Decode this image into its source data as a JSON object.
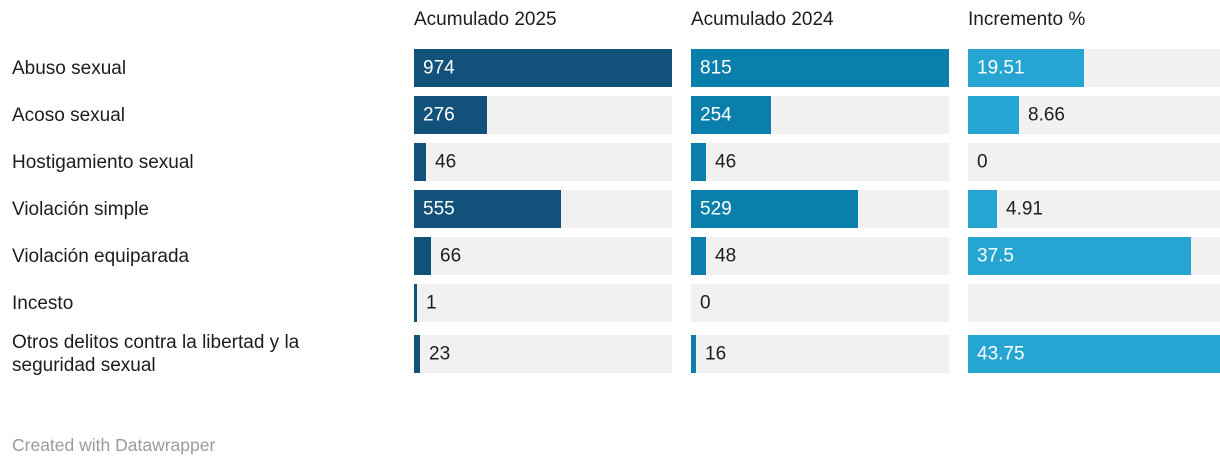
{
  "footer": {
    "credit": "Created with Datawrapper"
  },
  "colors": {
    "bar_2025": "#12527a",
    "bar_2024": "#0a7fac",
    "bar_increment": "#26a5d3",
    "track": "#f1f1f2",
    "text_dark": "#1d1d1d",
    "text_on_bar": "#ffffff",
    "credit_text": "#9b9b9b"
  },
  "chart_data": {
    "type": "bar",
    "layout_hint": "split-bar table, one independently-scaled bar column per measure, gray full-width tracks, value labels inside bars when wide enough",
    "columns": [
      {
        "key": "acc2025",
        "label": "Acumulado 2025",
        "max": 974,
        "color": "#12527a"
      },
      {
        "key": "acc2024",
        "label": "Acumulado 2024",
        "max": 815,
        "color": "#0a7fac"
      },
      {
        "key": "increment",
        "label": "Incremento %",
        "max": 43.75,
        "color": "#26a5d3"
      }
    ],
    "categories": [
      "Abuso sexual",
      "Acoso sexual",
      "Hostigamiento sexual",
      "Violación simple",
      "Violación equiparada",
      "Incesto",
      "Otros delitos contra la libertad y la seguridad sexual"
    ],
    "rows": [
      {
        "category": "Abuso sexual",
        "acc2025": 974,
        "acc2024": 815,
        "increment": 19.51
      },
      {
        "category": "Acoso sexual",
        "acc2025": 276,
        "acc2024": 254,
        "increment": 8.66
      },
      {
        "category": "Hostigamiento sexual",
        "acc2025": 46,
        "acc2024": 46,
        "increment": 0
      },
      {
        "category": "Violación simple",
        "acc2025": 555,
        "acc2024": 529,
        "increment": 4.91
      },
      {
        "category": "Violación equiparada",
        "acc2025": 66,
        "acc2024": 48,
        "increment": 37.5
      },
      {
        "category": "Incesto",
        "acc2025": 1,
        "acc2024": 0,
        "increment": null
      },
      {
        "category": "Otros delitos contra la libertad y la seguridad sexual",
        "acc2025": 23,
        "acc2024": 16,
        "increment": 43.75
      }
    ]
  }
}
